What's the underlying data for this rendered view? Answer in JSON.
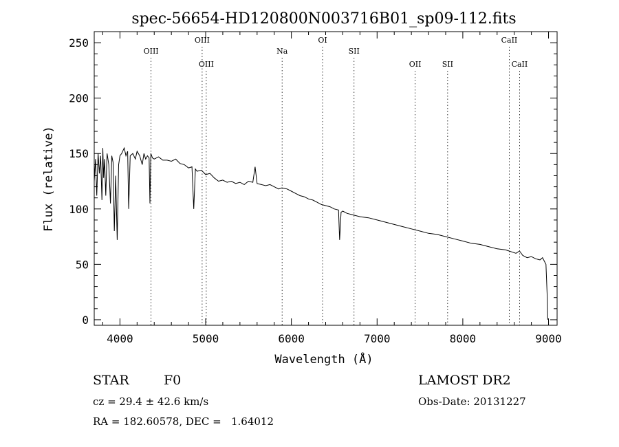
{
  "chart_data": {
    "type": "line",
    "title": "spec-56654-HD120800N003716B01_sp09-112.fits",
    "xlabel": "Wavelength (Å)",
    "ylabel": "Flux (relative)",
    "xlim": [
      3700,
      9100
    ],
    "ylim": [
      -5,
      260
    ],
    "xticks": [
      4000,
      5000,
      6000,
      7000,
      8000,
      9000
    ],
    "yticks": [
      0,
      50,
      100,
      150,
      200,
      250
    ],
    "grid": false,
    "series": [
      {
        "x": [
          3700,
          3715,
          3730,
          3745,
          3760,
          3775,
          3790,
          3800,
          3810,
          3820,
          3835,
          3850,
          3870,
          3889,
          3905,
          3920,
          3934,
          3950,
          3968,
          3985,
          4000,
          4020,
          4050,
          4070,
          4090,
          4102,
          4120,
          4150,
          4180,
          4200,
          4230,
          4260,
          4280,
          4300,
          4320,
          4340,
          4350,
          4360,
          4380,
          4400,
          4450,
          4500,
          4550,
          4600,
          4650,
          4700,
          4750,
          4800,
          4840,
          4861,
          4880,
          4900,
          4950,
          5000,
          5050,
          5100,
          5150,
          5200,
          5250,
          5300,
          5350,
          5400,
          5450,
          5500,
          5550,
          5577,
          5600,
          5650,
          5700,
          5750,
          5800,
          5850,
          5890,
          5950,
          6000,
          6050,
          6100,
          6150,
          6200,
          6250,
          6300,
          6350,
          6400,
          6450,
          6500,
          6550,
          6563,
          6580,
          6600,
          6650,
          6700,
          6800,
          6900,
          7000,
          7100,
          7200,
          7300,
          7400,
          7500,
          7600,
          7700,
          7800,
          7900,
          8000,
          8100,
          8200,
          8300,
          8400,
          8500,
          8540,
          8580,
          8620,
          8662,
          8700,
          8750,
          8800,
          8850,
          8900,
          8930,
          8950,
          8970,
          8985,
          8990
        ],
        "y": [
          125,
          145,
          112,
          150,
          132,
          148,
          108,
          155,
          128,
          145,
          112,
          150,
          140,
          105,
          148,
          142,
          80,
          130,
          72,
          140,
          148,
          150,
          155,
          148,
          152,
          100,
          148,
          150,
          145,
          152,
          148,
          140,
          150,
          145,
          148,
          146,
          105,
          150,
          146,
          145,
          147,
          144,
          144,
          143,
          145,
          141,
          140,
          137,
          138,
          100,
          136,
          134,
          135,
          131,
          132,
          128,
          125,
          126,
          124,
          125,
          123,
          124,
          122,
          125,
          124,
          138,
          123,
          122,
          121,
          122,
          120,
          118,
          119,
          118,
          116,
          114,
          112,
          111,
          109,
          108,
          106,
          104,
          103,
          102,
          100,
          99,
          72,
          97,
          98,
          96,
          95,
          93,
          92,
          90,
          88,
          86,
          84,
          82,
          80,
          78,
          77,
          75,
          73,
          71,
          69,
          68,
          66,
          64,
          63,
          62,
          61,
          60,
          62,
          58,
          56,
          57,
          55,
          54,
          56,
          53,
          50,
          20,
          0
        ],
        "color": "#000000"
      }
    ],
    "lines": [
      {
        "name": "OIII",
        "x": 4363,
        "row": 1
      },
      {
        "name": "OIII",
        "x": 4959,
        "row": 0
      },
      {
        "name": "OIII",
        "x": 5007,
        "row": 2
      },
      {
        "name": "Na",
        "x": 5892,
        "row": 1
      },
      {
        "name": "OI",
        "x": 6364,
        "row": 0
      },
      {
        "name": "SII",
        "x": 6731,
        "row": 1
      },
      {
        "name": "OII",
        "x": 7444,
        "row": 2
      },
      {
        "name": "SII",
        "x": 7823,
        "row": 2
      },
      {
        "name": "CaII",
        "x": 8542,
        "row": 0
      },
      {
        "name": "CaII",
        "x": 8662,
        "row": 2
      }
    ]
  },
  "info": {
    "object_class": "STAR",
    "subclass": "F0",
    "survey": "LAMOST DR2",
    "cz": "cz = 29.4 ± 42.6 km/s",
    "obs_date": "Obs-Date: 20131227",
    "coords": "RA = 182.60578, DEC =   1.64012"
  }
}
